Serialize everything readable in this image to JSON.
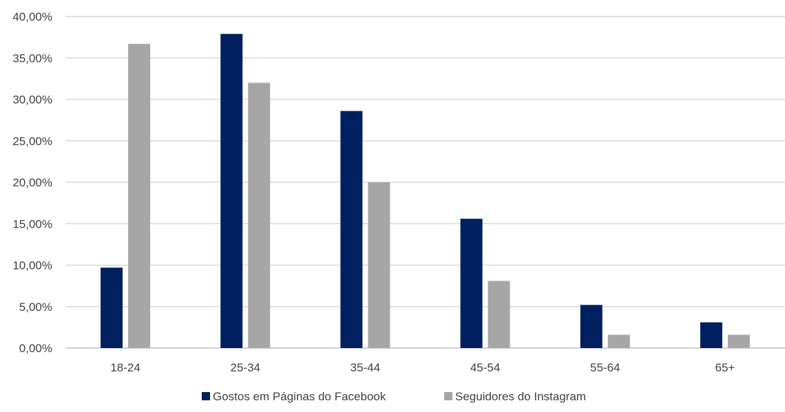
{
  "chart_data": {
    "type": "bar",
    "title": "",
    "xlabel": "",
    "ylabel": "",
    "categories": [
      "18-24",
      "25-34",
      "35-44",
      "45-54",
      "55-64",
      "65+"
    ],
    "series": [
      {
        "name": "Gostos em Páginas do Facebook",
        "color": "#002060",
        "values": [
          9.7,
          37.9,
          28.6,
          15.6,
          5.2,
          3.1
        ]
      },
      {
        "name": "Seguidores do Instagram",
        "color": "#A6A6A6",
        "values": [
          36.7,
          32.0,
          20.0,
          8.1,
          1.6,
          1.6
        ]
      }
    ],
    "ylim": [
      0,
      40
    ],
    "yticks": [
      0,
      5,
      10,
      15,
      20,
      25,
      30,
      35,
      40
    ],
    "ytick_labels": [
      "0,00%",
      "5,00%",
      "10,00%",
      "15,00%",
      "20,00%",
      "25,00%",
      "30,00%",
      "35,00%",
      "40,00%"
    ],
    "grid": true,
    "legend_position": "bottom"
  }
}
